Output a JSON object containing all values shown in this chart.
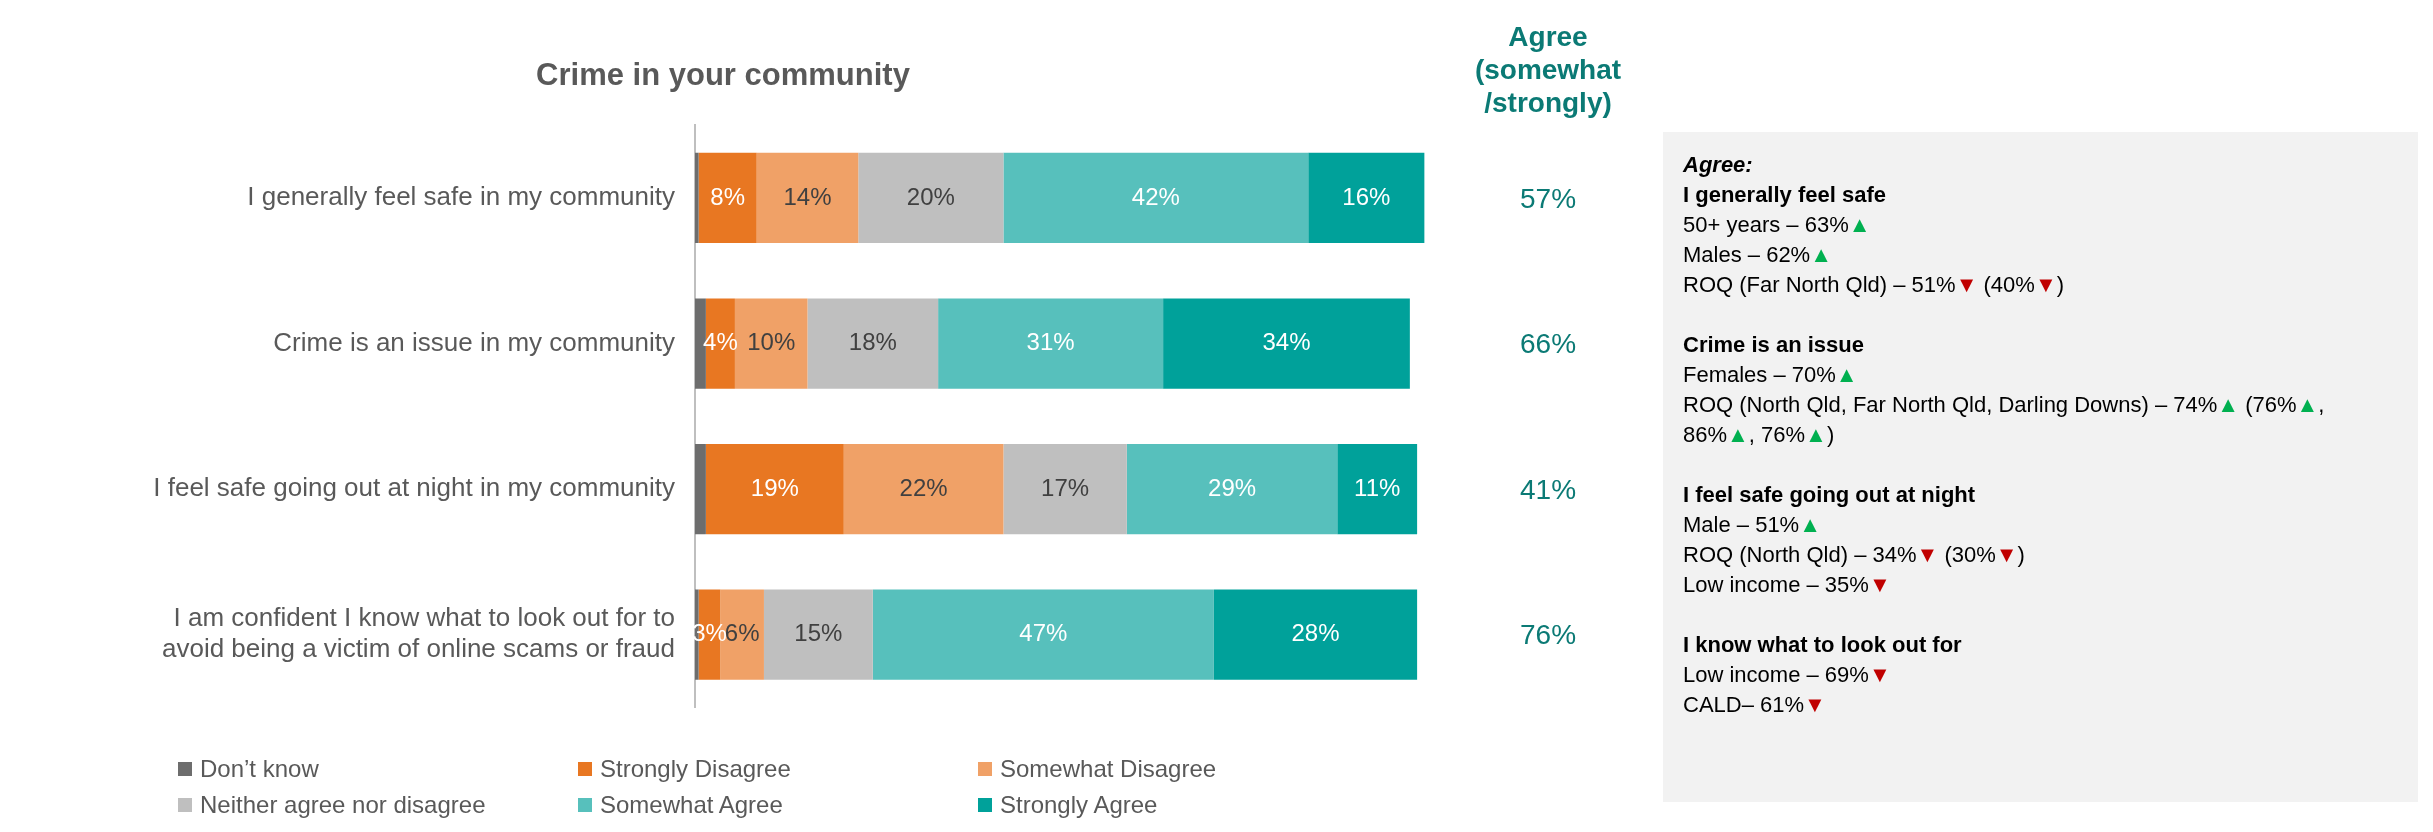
{
  "chart_data": [
    {
      "type": "bar",
      "orientation": "horizontal",
      "stacked": true,
      "title": "Crime in your community",
      "categories": [
        "I generally feel safe in my community",
        "Crime is an issue in my community",
        "I feel safe going out at night in my community",
        "I am confident I know what to look out for to avoid being a victim of online scams or fraud"
      ],
      "series": [
        {
          "name": "Don’t know",
          "color": "#6d6d6d",
          "values": [
            0.5,
            1.5,
            1.5,
            0.5
          ],
          "value_labels": [
            null,
            null,
            null,
            null
          ]
        },
        {
          "name": "Strongly Disagree",
          "color": "#e87722",
          "values": [
            8,
            4,
            19,
            3
          ],
          "value_labels": [
            "8%",
            "4%",
            "19%",
            "3%"
          ]
        },
        {
          "name": "Somewhat Disagree",
          "color": "#f0a167",
          "values": [
            14,
            10,
            22,
            6
          ],
          "value_labels": [
            "14%",
            "10%",
            "22%",
            "6%"
          ]
        },
        {
          "name": "Neither agree nor disagree",
          "color": "#bfbfbf",
          "values": [
            20,
            18,
            17,
            15
          ],
          "value_labels": [
            "20%",
            "18%",
            "17%",
            "15%"
          ]
        },
        {
          "name": "Somewhat Agree",
          "color": "#57c0bc",
          "values": [
            42,
            31,
            29,
            47
          ],
          "value_labels": [
            "42%",
            "31%",
            "29%",
            "47%"
          ]
        },
        {
          "name": "Strongly Agree",
          "color": "#00a19a",
          "values": [
            16,
            34,
            11,
            28
          ],
          "value_labels": [
            "16%",
            "34%",
            "11%",
            "28%"
          ]
        }
      ],
      "xlim": [
        0,
        101
      ],
      "tick_labels": "y",
      "grid": false,
      "legend": "bottom",
      "annotations": [
        "Agree\n(somewhat\n/strongly)",
        "57%",
        "66%",
        "41%",
        "76%"
      ]
    },
    {
      "type": "other",
      "title": "Agree:"
    },
    {
      "type": "other",
      "title": "I generally feel safe",
      "annotations": [
        "50+ years – 63%▲",
        "Males – 62%▲",
        "ROQ (Far North Qld) – 51%▼ (40%▼)"
      ]
    },
    {
      "type": "other",
      "title": "Crime is an issue",
      "annotations": [
        "Females – 70%▲",
        "ROQ (North Qld, Far North Qld, Darling Downs) – 74%▲ (76%▲, 86%▲, 76%▲)"
      ]
    },
    {
      "type": "other",
      "title": "I feel safe going out at night",
      "annotations": [
        "Male – 51%▲",
        "ROQ (North Qld) – 34%▼ (30%▼)",
        "Low income – 35%▼"
      ]
    },
    {
      "type": "other",
      "title": "I know what to look out for",
      "annotations": [
        "Low income – 69%▼",
        "CALD– 61%▼"
      ]
    }
  ]
}
